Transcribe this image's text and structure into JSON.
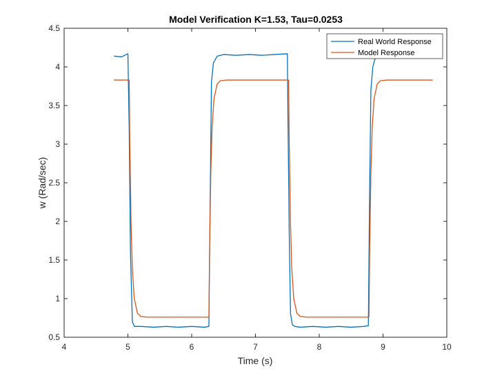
{
  "chart_data": {
    "type": "line",
    "title": "Model Verification K=1.53, Tau=0.0253",
    "xlabel": "Time (s)",
    "ylabel": "w (Rad/sec)",
    "xlim": [
      4,
      10
    ],
    "ylim": [
      0.5,
      4.5
    ],
    "xticks": [
      4,
      5,
      6,
      7,
      8,
      9,
      10
    ],
    "yticks": [
      0.5,
      1,
      1.5,
      2,
      2.5,
      3,
      3.5,
      4,
      4.5
    ],
    "x_tick_labels": [
      "4",
      "5",
      "6",
      "7",
      "8",
      "9",
      "10"
    ],
    "y_tick_labels": [
      "0.5",
      "1",
      "1.5",
      "2",
      "2.5",
      "3",
      "3.5",
      "4",
      "4.5"
    ],
    "grid": false,
    "legend_position": "top-right",
    "series": [
      {
        "name": "Real World Response",
        "color": "#0072BD",
        "x": [
          4.78,
          4.9,
          5.0,
          5.02,
          5.04,
          5.07,
          5.1,
          5.2,
          5.4,
          5.6,
          5.8,
          6.0,
          6.2,
          6.27,
          6.29,
          6.31,
          6.34,
          6.4,
          6.5,
          6.7,
          6.9,
          7.1,
          7.3,
          7.5,
          7.51,
          7.53,
          7.55,
          7.58,
          7.62,
          7.7,
          7.9,
          8.1,
          8.3,
          8.5,
          8.7,
          8.77,
          8.79,
          8.81,
          8.84,
          8.88
        ],
        "y": [
          4.14,
          4.13,
          4.17,
          3.2,
          1.6,
          0.7,
          0.64,
          0.64,
          0.63,
          0.64,
          0.63,
          0.64,
          0.63,
          0.64,
          2.3,
          3.8,
          4.05,
          4.14,
          4.16,
          4.15,
          4.16,
          4.15,
          4.16,
          4.17,
          3.3,
          1.8,
          0.8,
          0.66,
          0.64,
          0.63,
          0.64,
          0.63,
          0.64,
          0.63,
          0.64,
          0.65,
          2.4,
          3.7,
          4.0,
          4.12
        ]
      },
      {
        "name": "Model Response",
        "color": "#D95319",
        "x": [
          4.78,
          5.02,
          5.03,
          5.05,
          5.07,
          5.1,
          5.15,
          5.2,
          5.3,
          6.27,
          6.28,
          6.3,
          6.32,
          6.35,
          6.4,
          6.45,
          6.55,
          7.52,
          7.53,
          7.55,
          7.57,
          7.6,
          7.65,
          7.7,
          7.8,
          8.78,
          8.79,
          8.81,
          8.83,
          8.86,
          8.91,
          8.96,
          9.06,
          9.78
        ],
        "y": [
          3.83,
          3.83,
          3.0,
          1.96,
          1.38,
          1.0,
          0.81,
          0.77,
          0.76,
          0.76,
          1.59,
          2.63,
          3.21,
          3.59,
          3.78,
          3.82,
          3.83,
          3.83,
          3.0,
          1.96,
          1.38,
          1.0,
          0.81,
          0.77,
          0.76,
          0.76,
          1.59,
          2.63,
          3.21,
          3.59,
          3.78,
          3.82,
          3.83,
          3.83
        ]
      }
    ]
  }
}
